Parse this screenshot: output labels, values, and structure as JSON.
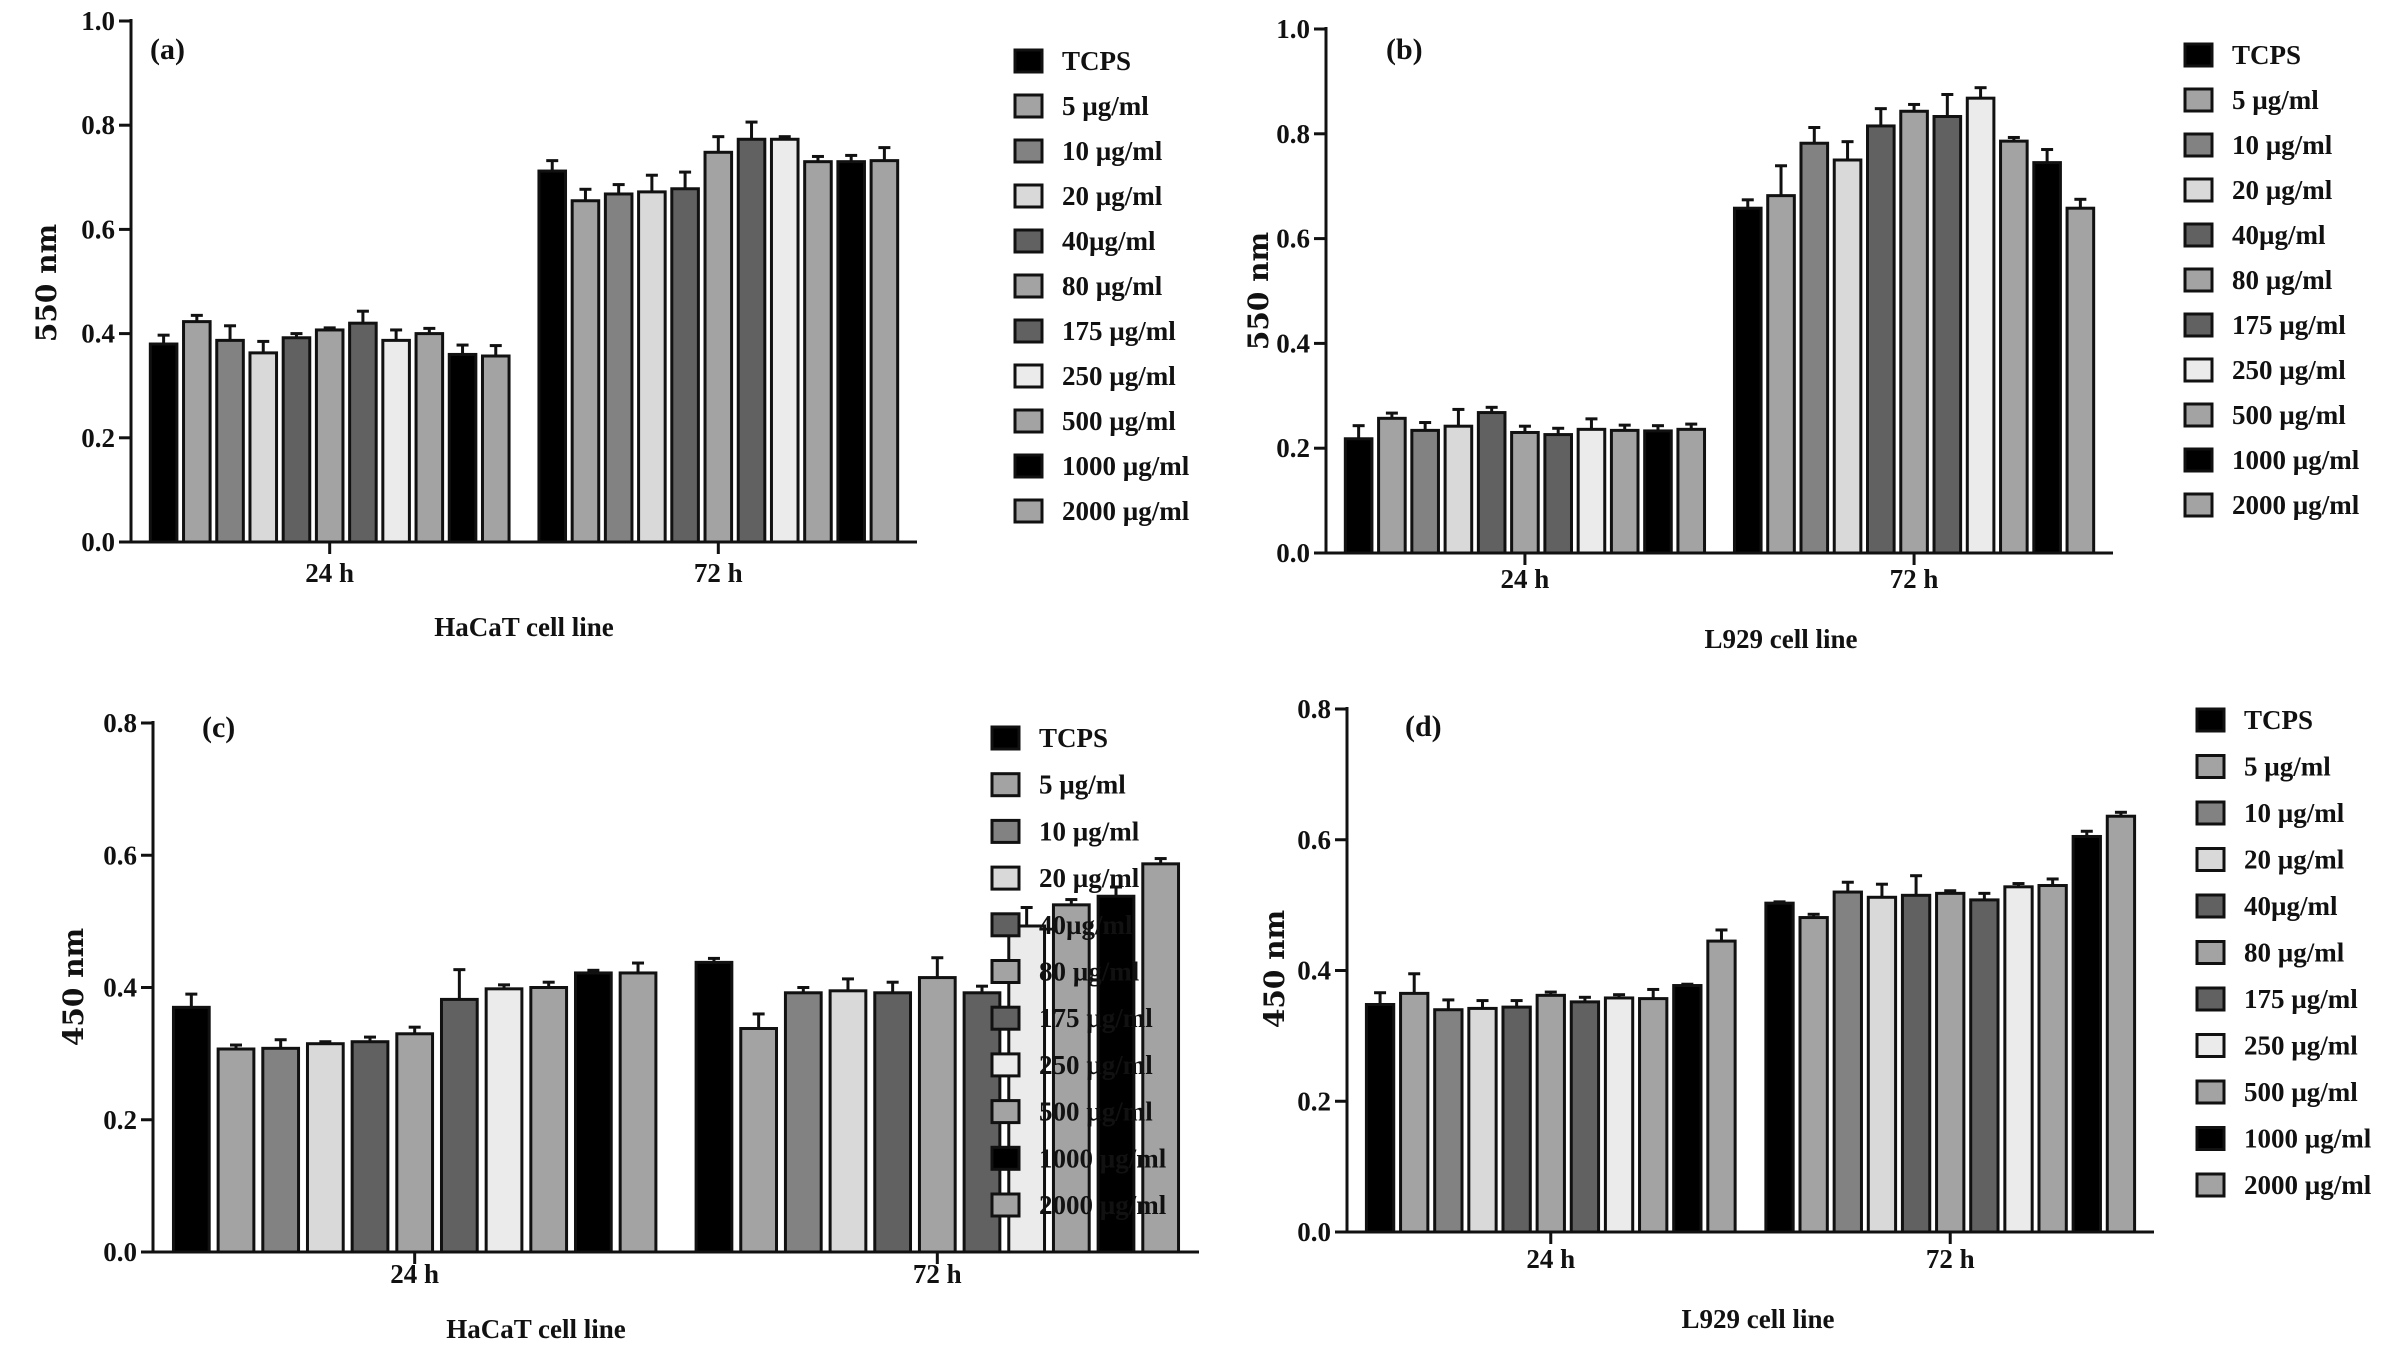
{
  "chart_data": [
    {
      "type": "bar",
      "panel_label": "(a)",
      "xlabel": "HaCaT cell line",
      "ylabel": "550 nm",
      "categories": [
        "24 h",
        "72 h"
      ],
      "ylim": [
        0,
        1.0
      ],
      "yticks": [
        "0.0",
        "0.2",
        "0.4",
        "0.6",
        "0.8",
        "1.0"
      ],
      "legend": "right",
      "grid": false,
      "series": [
        {
          "name": "TCPS",
          "color": "#000000",
          "values": [
            0.38,
            0.712
          ],
          "errors": [
            0.017,
            0.02
          ]
        },
        {
          "name": "5 µg/ml",
          "color": "#a3a3a3",
          "values": [
            0.423,
            0.655
          ],
          "errors": [
            0.012,
            0.022
          ]
        },
        {
          "name": "10 µg/ml",
          "color": "#828282",
          "values": [
            0.387,
            0.668
          ],
          "errors": [
            0.028,
            0.018
          ]
        },
        {
          "name": "20 µg/ml",
          "color": "#d9d9d9",
          "values": [
            0.363,
            0.672
          ],
          "errors": [
            0.022,
            0.032
          ]
        },
        {
          "name": "40µg/ml",
          "color": "#616161",
          "values": [
            0.392,
            0.678
          ],
          "errors": [
            0.008,
            0.032
          ]
        },
        {
          "name": "80 µg/ml",
          "color": "#a3a3a3",
          "values": [
            0.407,
            0.748
          ],
          "errors": [
            0.004,
            0.03
          ]
        },
        {
          "name": "175 µg/ml",
          "color": "#616161",
          "values": [
            0.42,
            0.773
          ],
          "errors": [
            0.023,
            0.033
          ]
        },
        {
          "name": "250 µg/ml",
          "color": "#ebebeb",
          "values": [
            0.387,
            0.773
          ],
          "errors": [
            0.02,
            0.005
          ]
        },
        {
          "name": "500 µg/ml",
          "color": "#a3a3a3",
          "values": [
            0.4,
            0.73
          ],
          "errors": [
            0.01,
            0.01
          ]
        },
        {
          "name": "1000 µg/ml",
          "color": "#000000",
          "values": [
            0.36,
            0.73
          ],
          "errors": [
            0.018,
            0.012
          ]
        },
        {
          "name": "2000 µg/ml",
          "color": "#a3a3a3",
          "values": [
            0.357,
            0.732
          ],
          "errors": [
            0.02,
            0.025
          ]
        }
      ]
    },
    {
      "type": "bar",
      "panel_label": "(b)",
      "xlabel": "L929 cell line",
      "ylabel": "550 nm",
      "categories": [
        "24 h",
        "72 h"
      ],
      "ylim": [
        0,
        1.0
      ],
      "yticks": [
        "0.0",
        "0.2",
        "0.4",
        "0.6",
        "0.8",
        "1.0"
      ],
      "legend": "right",
      "grid": false,
      "series": [
        {
          "name": "TCPS",
          "color": "#000000",
          "values": [
            0.218,
            0.658
          ],
          "errors": [
            0.025,
            0.016
          ]
        },
        {
          "name": "5 µg/ml",
          "color": "#a3a3a3",
          "values": [
            0.257,
            0.682
          ],
          "errors": [
            0.01,
            0.057
          ]
        },
        {
          "name": "10 µg/ml",
          "color": "#828282",
          "values": [
            0.234,
            0.782
          ],
          "errors": [
            0.015,
            0.03
          ]
        },
        {
          "name": "20 µg/ml",
          "color": "#d9d9d9",
          "values": [
            0.242,
            0.75
          ],
          "errors": [
            0.032,
            0.035
          ]
        },
        {
          "name": "40µg/ml",
          "color": "#616161",
          "values": [
            0.268,
            0.815
          ],
          "errors": [
            0.01,
            0.033
          ]
        },
        {
          "name": "80 µg/ml",
          "color": "#a3a3a3",
          "values": [
            0.23,
            0.843
          ],
          "errors": [
            0.012,
            0.013
          ]
        },
        {
          "name": "175 µg/ml",
          "color": "#616161",
          "values": [
            0.226,
            0.833
          ],
          "errors": [
            0.012,
            0.042
          ]
        },
        {
          "name": "250 µg/ml",
          "color": "#ebebeb",
          "values": [
            0.236,
            0.868
          ],
          "errors": [
            0.02,
            0.02
          ]
        },
        {
          "name": "500 µg/ml",
          "color": "#a3a3a3",
          "values": [
            0.234,
            0.786
          ],
          "errors": [
            0.01,
            0.007
          ]
        },
        {
          "name": "1000 µg/ml",
          "color": "#000000",
          "values": [
            0.233,
            0.745
          ],
          "errors": [
            0.01,
            0.025
          ]
        },
        {
          "name": "2000 µg/ml",
          "color": "#a3a3a3",
          "values": [
            0.236,
            0.658
          ],
          "errors": [
            0.01,
            0.017
          ]
        }
      ]
    },
    {
      "type": "bar",
      "panel_label": "(c)",
      "xlabel": "HaCaT cell line",
      "ylabel": "450 nm",
      "categories": [
        "24 h",
        "72 h"
      ],
      "ylim": [
        0,
        0.8
      ],
      "yticks": [
        "0.0",
        "0.2",
        "0.4",
        "0.6",
        "0.8"
      ],
      "legend": "right",
      "grid": false,
      "series": [
        {
          "name": "TCPS",
          "color": "#000000",
          "values": [
            0.37,
            0.438
          ],
          "errors": [
            0.02,
            0.006
          ]
        },
        {
          "name": "5 µg/ml",
          "color": "#a3a3a3",
          "values": [
            0.307,
            0.338
          ],
          "errors": [
            0.006,
            0.022
          ]
        },
        {
          "name": "10 µg/ml",
          "color": "#828282",
          "values": [
            0.308,
            0.392
          ],
          "errors": [
            0.013,
            0.008
          ]
        },
        {
          "name": "20 µg/ml",
          "color": "#d9d9d9",
          "values": [
            0.315,
            0.395
          ],
          "errors": [
            0.003,
            0.018
          ]
        },
        {
          "name": "40µg/ml",
          "color": "#616161",
          "values": [
            0.318,
            0.392
          ],
          "errors": [
            0.007,
            0.016
          ]
        },
        {
          "name": "80 µg/ml",
          "color": "#a3a3a3",
          "values": [
            0.33,
            0.415
          ],
          "errors": [
            0.01,
            0.03
          ]
        },
        {
          "name": "175 µg/ml",
          "color": "#616161",
          "values": [
            0.382,
            0.392
          ],
          "errors": [
            0.045,
            0.01
          ]
        },
        {
          "name": "250 µg/ml",
          "color": "#ebebeb",
          "values": [
            0.398,
            0.493
          ],
          "errors": [
            0.006,
            0.028
          ]
        },
        {
          "name": "500 µg/ml",
          "color": "#a3a3a3",
          "values": [
            0.4,
            0.525
          ],
          "errors": [
            0.008,
            0.008
          ]
        },
        {
          "name": "1000 µg/ml",
          "color": "#000000",
          "values": [
            0.422,
            0.538
          ],
          "errors": [
            0.004,
            0.014
          ]
        },
        {
          "name": "2000 µg/ml",
          "color": "#a3a3a3",
          "values": [
            0.422,
            0.587
          ],
          "errors": [
            0.015,
            0.008
          ]
        }
      ]
    },
    {
      "type": "bar",
      "panel_label": "(d)",
      "xlabel": "L929 cell line",
      "ylabel": "450 nm",
      "categories": [
        "24 h",
        "72 h"
      ],
      "ylim": [
        0,
        0.8
      ],
      "yticks": [
        "0.0",
        "0.2",
        "0.4",
        "0.6",
        "0.8"
      ],
      "legend": "right",
      "grid": false,
      "series": [
        {
          "name": "TCPS",
          "color": "#000000",
          "values": [
            0.348,
            0.503
          ],
          "errors": [
            0.018,
            0.002
          ]
        },
        {
          "name": "5 µg/ml",
          "color": "#a3a3a3",
          "values": [
            0.365,
            0.481
          ],
          "errors": [
            0.03,
            0.005
          ]
        },
        {
          "name": "10 µg/ml",
          "color": "#828282",
          "values": [
            0.34,
            0.52
          ],
          "errors": [
            0.015,
            0.015
          ]
        },
        {
          "name": "20 µg/ml",
          "color": "#d9d9d9",
          "values": [
            0.342,
            0.512
          ],
          "errors": [
            0.012,
            0.02
          ]
        },
        {
          "name": "40µg/ml",
          "color": "#616161",
          "values": [
            0.344,
            0.515
          ],
          "errors": [
            0.01,
            0.03
          ]
        },
        {
          "name": "80 µg/ml",
          "color": "#a3a3a3",
          "values": [
            0.362,
            0.518
          ],
          "errors": [
            0.005,
            0.004
          ]
        },
        {
          "name": "175 µg/ml",
          "color": "#616161",
          "values": [
            0.352,
            0.508
          ],
          "errors": [
            0.007,
            0.01
          ]
        },
        {
          "name": "250 µg/ml",
          "color": "#ebebeb",
          "values": [
            0.358,
            0.528
          ],
          "errors": [
            0.005,
            0.005
          ]
        },
        {
          "name": "500 µg/ml",
          "color": "#a3a3a3",
          "values": [
            0.357,
            0.53
          ],
          "errors": [
            0.014,
            0.01
          ]
        },
        {
          "name": "1000 µg/ml",
          "color": "#000000",
          "values": [
            0.377,
            0.605
          ],
          "errors": [
            0.002,
            0.008
          ]
        },
        {
          "name": "2000 µg/ml",
          "color": "#a3a3a3",
          "values": [
            0.445,
            0.636
          ],
          "errors": [
            0.017,
            0.006
          ]
        }
      ]
    }
  ]
}
